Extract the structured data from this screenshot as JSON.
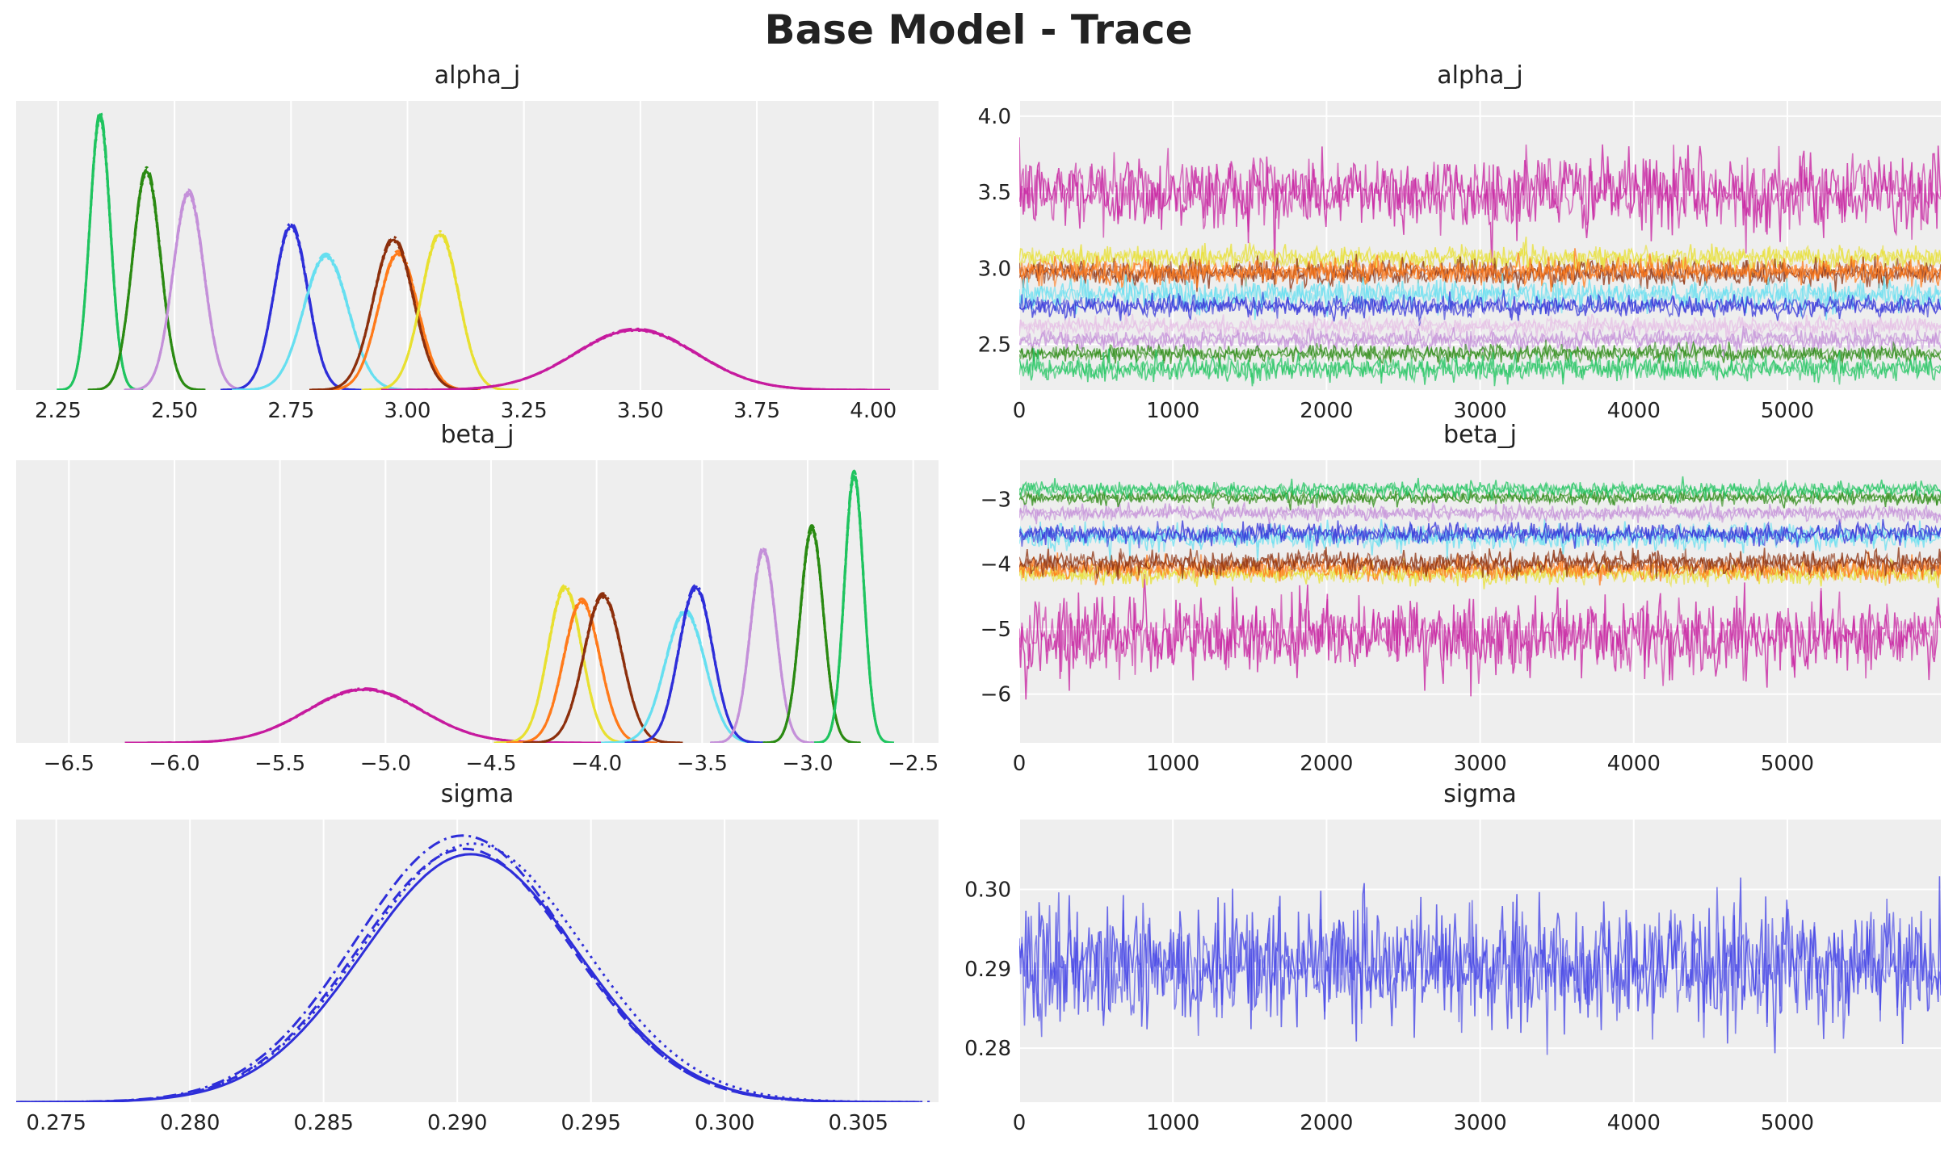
{
  "figure": {
    "title": "Base Model - Trace"
  },
  "colors": [
    "#e6bfe6",
    "#c61a9e",
    "#2e2ed9",
    "#66dff0",
    "#ff7a1a",
    "#8c2f0c",
    "#e8e030",
    "#1fc45f",
    "#2a8a12",
    "#c490d9"
  ],
  "chart_data": [
    {
      "id": "alpha_kde",
      "type": "line",
      "title": "alpha_j",
      "xlim": [
        2.16,
        4.14
      ],
      "ylim": [
        0,
        1.06
      ],
      "grid": true,
      "xticks": [
        2.25,
        2.5,
        2.75,
        3.0,
        3.25,
        3.5,
        3.75,
        4.0
      ],
      "xtick_labels": [
        "2.25",
        "2.50",
        "2.75",
        "3.00",
        "3.25",
        "3.50",
        "3.75",
        "4.00"
      ],
      "yticks": [],
      "ytick_labels": [],
      "series": [
        {
          "color": "#1fc45f",
          "mean": 2.34,
          "sd": 0.022,
          "peak": 1.0
        },
        {
          "color": "#2a8a12",
          "mean": 2.44,
          "sd": 0.03,
          "peak": 0.8
        },
        {
          "color": "#c490d9",
          "mean": 2.53,
          "sd": 0.033,
          "peak": 0.72
        },
        {
          "color": "#2e2ed9",
          "mean": 2.75,
          "sd": 0.036,
          "peak": 0.6
        },
        {
          "color": "#66dff0",
          "mean": 2.825,
          "sd": 0.048,
          "peak": 0.49
        },
        {
          "color": "#ff7a1a",
          "mean": 2.98,
          "sd": 0.042,
          "peak": 0.5
        },
        {
          "color": "#8c2f0c",
          "mean": 2.97,
          "sd": 0.043,
          "peak": 0.55
        },
        {
          "color": "#e8e030",
          "mean": 3.07,
          "sd": 0.04,
          "peak": 0.57
        },
        {
          "color": "#c61a9e",
          "mean": 3.49,
          "sd": 0.13,
          "peak": 0.22
        }
      ]
    },
    {
      "id": "alpha_trace",
      "type": "line",
      "title": "alpha_j",
      "xlim": [
        0,
        5999
      ],
      "ylim": [
        2.2,
        4.1
      ],
      "grid": true,
      "xticks": [
        0,
        1000,
        2000,
        3000,
        4000,
        5000
      ],
      "xtick_labels": [
        "0",
        "1000",
        "2000",
        "3000",
        "4000",
        "5000"
      ],
      "yticks": [
        2.5,
        3.0,
        3.5,
        4.0
      ],
      "ytick_labels": [
        "2.5",
        "3.0",
        "3.5",
        "4.0"
      ],
      "series": [
        {
          "color": "#c61a9e",
          "center": 3.5,
          "spread": 0.13
        },
        {
          "color": "#e8e030",
          "center": 3.07,
          "spread": 0.04
        },
        {
          "color": "#8c2f0c",
          "center": 2.97,
          "spread": 0.043
        },
        {
          "color": "#ff7a1a",
          "center": 2.98,
          "spread": 0.042
        },
        {
          "color": "#66dff0",
          "center": 2.825,
          "spread": 0.048
        },
        {
          "color": "#2e2ed9",
          "center": 2.75,
          "spread": 0.036
        },
        {
          "color": "#e6bfe6",
          "center": 2.62,
          "spread": 0.03
        },
        {
          "color": "#c490d9",
          "center": 2.53,
          "spread": 0.033
        },
        {
          "color": "#2a8a12",
          "center": 2.44,
          "spread": 0.03
        },
        {
          "color": "#1fc45f",
          "center": 2.34,
          "spread": 0.04
        }
      ]
    },
    {
      "id": "beta_kde",
      "type": "line",
      "title": "beta_j",
      "xlim": [
        -6.75,
        -2.38
      ],
      "ylim": [
        0,
        1.06
      ],
      "grid": true,
      "xticks": [
        -6.5,
        -6.0,
        -5.5,
        -5.0,
        -4.5,
        -4.0,
        -3.5,
        -3.0,
        -2.5
      ],
      "xtick_labels": [
        "−6.5",
        "−6.0",
        "−5.5",
        "−5.0",
        "−4.5",
        "−4.0",
        "−3.5",
        "−3.0",
        "−2.5"
      ],
      "yticks": [],
      "ytick_labels": [],
      "series": [
        {
          "color": "#c61a9e",
          "mean": -5.1,
          "sd": 0.27,
          "peak": 0.2
        },
        {
          "color": "#e8e030",
          "mean": -4.15,
          "sd": 0.08,
          "peak": 0.58
        },
        {
          "color": "#ff7a1a",
          "mean": -4.07,
          "sd": 0.085,
          "peak": 0.53
        },
        {
          "color": "#8c2f0c",
          "mean": -3.97,
          "sd": 0.09,
          "peak": 0.55
        },
        {
          "color": "#66dff0",
          "mean": -3.58,
          "sd": 0.095,
          "peak": 0.49
        },
        {
          "color": "#2e2ed9",
          "mean": -3.53,
          "sd": 0.08,
          "peak": 0.58
        },
        {
          "color": "#c490d9",
          "mean": -3.21,
          "sd": 0.06,
          "peak": 0.72
        },
        {
          "color": "#2a8a12",
          "mean": -2.98,
          "sd": 0.055,
          "peak": 0.8
        },
        {
          "color": "#1fc45f",
          "mean": -2.78,
          "sd": 0.045,
          "peak": 1.0
        }
      ]
    },
    {
      "id": "beta_trace",
      "type": "line",
      "title": "beta_j",
      "xlim": [
        0,
        5999
      ],
      "ylim": [
        -6.75,
        -2.4
      ],
      "grid": true,
      "xticks": [
        0,
        1000,
        2000,
        3000,
        4000,
        5000
      ],
      "xtick_labels": [
        "0",
        "1000",
        "2000",
        "3000",
        "4000",
        "5000"
      ],
      "yticks": [
        -6,
        -5,
        -4,
        -3
      ],
      "ytick_labels": [
        "−6",
        "−5",
        "−4",
        "−3"
      ],
      "series": [
        {
          "color": "#c61a9e",
          "center": -5.1,
          "spread": 0.3
        },
        {
          "color": "#e8e030",
          "center": -4.15,
          "spread": 0.08
        },
        {
          "color": "#ff7a1a",
          "center": -4.07,
          "spread": 0.085
        },
        {
          "color": "#8c2f0c",
          "center": -3.97,
          "spread": 0.09
        },
        {
          "color": "#66dff0",
          "center": -3.58,
          "spread": 0.095
        },
        {
          "color": "#2e2ed9",
          "center": -3.53,
          "spread": 0.08
        },
        {
          "color": "#c490d9",
          "center": -3.21,
          "spread": 0.06
        },
        {
          "color": "#2a8a12",
          "center": -2.98,
          "spread": 0.055
        },
        {
          "color": "#1fc45f",
          "center": -2.85,
          "spread": 0.06
        }
      ]
    },
    {
      "id": "sigma_kde",
      "type": "line",
      "title": "sigma",
      "xlim": [
        0.2735,
        0.308
      ],
      "ylim": [
        0,
        1.06
      ],
      "grid": true,
      "xticks": [
        0.275,
        0.28,
        0.285,
        0.29,
        0.295,
        0.3,
        0.305
      ],
      "xtick_labels": [
        "0.275",
        "0.280",
        "0.285",
        "0.290",
        "0.295",
        "0.300",
        "0.305"
      ],
      "yticks": [],
      "ytick_labels": [],
      "series": [
        {
          "color": "#2e2ed9",
          "mean": 0.2905,
          "sd": 0.004,
          "peak": 0.93,
          "dash": ""
        },
        {
          "color": "#2e2ed9",
          "mean": 0.2903,
          "sd": 0.004,
          "peak": 0.95,
          "dash": "14 8"
        },
        {
          "color": "#2e2ed9",
          "mean": 0.2906,
          "sd": 0.0041,
          "peak": 0.97,
          "dash": "3 6"
        },
        {
          "color": "#2e2ed9",
          "mean": 0.2902,
          "sd": 0.004,
          "peak": 1.0,
          "dash": "16 6 3 6"
        }
      ]
    },
    {
      "id": "sigma_trace",
      "type": "line",
      "title": "sigma",
      "xlim": [
        0,
        5999
      ],
      "ylim": [
        0.2732,
        0.3088
      ],
      "grid": true,
      "xticks": [
        0,
        1000,
        2000,
        3000,
        4000,
        5000
      ],
      "xtick_labels": [
        "0",
        "1000",
        "2000",
        "3000",
        "4000",
        "5000"
      ],
      "yticks": [
        0.28,
        0.29,
        0.3
      ],
      "ytick_labels": [
        "0.28",
        "0.29",
        "0.30"
      ],
      "series": [
        {
          "color": "#3c3ce6",
          "center": 0.2905,
          "spread": 0.004
        }
      ]
    }
  ]
}
